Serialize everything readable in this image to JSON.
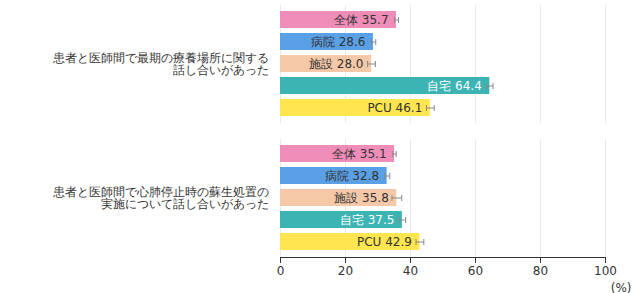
{
  "chart_data": {
    "type": "bar",
    "orientation": "horizontal",
    "categories": [
      "患者と医師間で最期の療養場所に関する\n話し合いがあった",
      "患者と医師間で心肺停止時の蘇生処置の\n実施について話し合いがあった"
    ],
    "series": [
      {
        "name": "全体",
        "color": "#f08cb8",
        "values": [
          35.7,
          35.1
        ],
        "value_labels": [
          "35.7",
          "35.1"
        ],
        "error": [
          0.6,
          0.5
        ]
      },
      {
        "name": "病院",
        "color": "#5aa0e6",
        "values": [
          28.6,
          32.8
        ],
        "value_labels": [
          "28.6",
          "32.8"
        ],
        "error": [
          0.7,
          0.8
        ]
      },
      {
        "name": "施設",
        "color": "#f5c8a8",
        "values": [
          28.0,
          35.8
        ],
        "value_labels": [
          "28.0",
          "35.8"
        ],
        "error": [
          1.2,
          1.5
        ]
      },
      {
        "name": "自宅",
        "color": "#3cb4b4",
        "values": [
          64.4,
          37.5
        ],
        "value_labels": [
          "64.4",
          "37.5"
        ],
        "error": [
          1.0,
          1.0
        ]
      },
      {
        "name": "PCU",
        "color": "#ffe650",
        "values": [
          46.1,
          42.9
        ],
        "value_labels": [
          "46.1",
          "42.9"
        ],
        "error": [
          1.2,
          1.2
        ]
      }
    ],
    "xlim": [
      0,
      100
    ],
    "xticks": [
      0,
      20,
      40,
      60,
      80,
      100
    ],
    "x_label": "(%)",
    "grid": true,
    "data_labels": true
  }
}
